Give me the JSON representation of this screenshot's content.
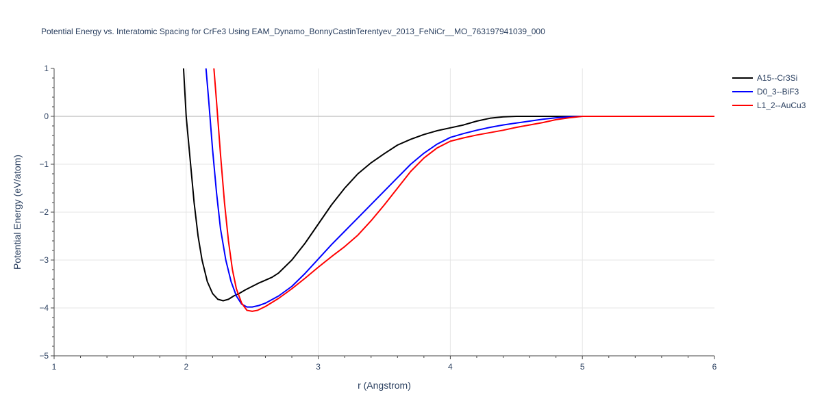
{
  "chart_data": {
    "type": "line",
    "title": "Potential Energy vs. Interatomic Spacing for CrFe3 Using EAM_Dynamo_BonnyCastinTerentyev_2013_FeNiCr__MO_763197941039_000",
    "xlabel": "r (Angstrom)",
    "ylabel": "Potential Energy (eV/atom)",
    "xlim": [
      1,
      6
    ],
    "ylim": [
      -5,
      1
    ],
    "xticks": [
      1,
      2,
      3,
      4,
      5,
      6
    ],
    "xtick_labels": [
      "1",
      "2",
      "3",
      "4",
      "5",
      "6"
    ],
    "yticks": [
      -5,
      -4,
      -3,
      -2,
      -1,
      0,
      1
    ],
    "ytick_labels": [
      "−5",
      "−4",
      "−3",
      "−2",
      "−1",
      "0",
      "1"
    ],
    "grid": true,
    "legend_position": "top-right",
    "series": [
      {
        "name": "A15--Cr3Si",
        "color": "#000000",
        "x": [
          1.98,
          2.0,
          2.03,
          2.06,
          2.09,
          2.12,
          2.16,
          2.2,
          2.24,
          2.28,
          2.32,
          2.36,
          2.4,
          2.45,
          2.5,
          2.55,
          2.6,
          2.65,
          2.7,
          2.8,
          2.9,
          3.0,
          3.1,
          3.2,
          3.3,
          3.4,
          3.5,
          3.6,
          3.7,
          3.8,
          3.9,
          4.0,
          4.1,
          4.2,
          4.3,
          4.4,
          4.5,
          4.6,
          4.7,
          4.8,
          4.9,
          5.0,
          6.0
        ],
        "y": [
          1.0,
          0.0,
          -0.9,
          -1.8,
          -2.5,
          -3.0,
          -3.45,
          -3.7,
          -3.82,
          -3.85,
          -3.82,
          -3.75,
          -3.7,
          -3.62,
          -3.55,
          -3.48,
          -3.42,
          -3.36,
          -3.27,
          -3.0,
          -2.65,
          -2.25,
          -1.85,
          -1.5,
          -1.2,
          -0.97,
          -0.78,
          -0.6,
          -0.48,
          -0.38,
          -0.3,
          -0.24,
          -0.18,
          -0.1,
          -0.04,
          -0.01,
          0.0,
          0.0,
          0.0,
          0.0,
          0.0,
          0.0,
          0.0
        ]
      },
      {
        "name": "D0_3--BiF3",
        "color": "#0000ff",
        "x": [
          2.15,
          2.17,
          2.2,
          2.23,
          2.26,
          2.3,
          2.34,
          2.38,
          2.42,
          2.46,
          2.5,
          2.55,
          2.6,
          2.7,
          2.8,
          2.9,
          3.0,
          3.1,
          3.2,
          3.3,
          3.4,
          3.5,
          3.6,
          3.7,
          3.8,
          3.9,
          4.0,
          4.1,
          4.2,
          4.3,
          4.4,
          4.5,
          4.6,
          4.7,
          4.8,
          4.9,
          5.0,
          6.0
        ],
        "y": [
          1.0,
          0.35,
          -0.7,
          -1.6,
          -2.35,
          -3.0,
          -3.45,
          -3.75,
          -3.92,
          -3.98,
          -3.98,
          -3.95,
          -3.9,
          -3.75,
          -3.55,
          -3.28,
          -2.98,
          -2.68,
          -2.4,
          -2.12,
          -1.84,
          -1.56,
          -1.28,
          -1.0,
          -0.77,
          -0.58,
          -0.44,
          -0.36,
          -0.29,
          -0.23,
          -0.18,
          -0.14,
          -0.1,
          -0.06,
          -0.03,
          -0.01,
          0.0,
          0.0
        ]
      },
      {
        "name": "L1_2--AuCu3",
        "color": "#ff0000",
        "x": [
          2.21,
          2.23,
          2.26,
          2.29,
          2.32,
          2.35,
          2.38,
          2.42,
          2.46,
          2.5,
          2.54,
          2.6,
          2.7,
          2.8,
          2.9,
          3.0,
          3.1,
          3.2,
          3.3,
          3.4,
          3.5,
          3.6,
          3.7,
          3.8,
          3.9,
          4.0,
          4.1,
          4.2,
          4.3,
          4.4,
          4.5,
          4.6,
          4.7,
          4.8,
          4.9,
          5.0,
          6.0
        ],
        "y": [
          1.0,
          0.3,
          -0.8,
          -1.8,
          -2.6,
          -3.2,
          -3.6,
          -3.9,
          -4.05,
          -4.07,
          -4.05,
          -3.97,
          -3.8,
          -3.6,
          -3.38,
          -3.15,
          -2.93,
          -2.72,
          -2.48,
          -2.18,
          -1.85,
          -1.5,
          -1.15,
          -0.87,
          -0.66,
          -0.52,
          -0.45,
          -0.39,
          -0.34,
          -0.29,
          -0.23,
          -0.18,
          -0.13,
          -0.07,
          -0.03,
          0.0,
          0.0
        ]
      }
    ]
  }
}
